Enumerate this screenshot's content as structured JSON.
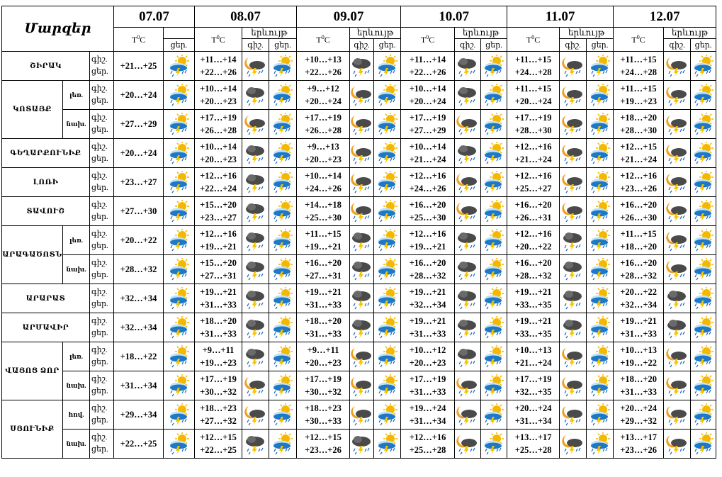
{
  "header": {
    "marzer_label": "Մարզեր",
    "temp_label": "T",
    "temp_unit": "C",
    "degree": "0",
    "phenomenon_label": "երևույթ",
    "night_abbr": "գիշ.",
    "day_abbr": "ցեր.",
    "dates": [
      "07.07",
      "08.07",
      "09.07",
      "10.07",
      "11.07",
      "12.07"
    ]
  },
  "rows": [
    {
      "region": "ՇԻՐԱԿ",
      "part": "",
      "first_temp": "+21…+25",
      "first_icon": "sun-cloud-thunder-rain",
      "days": [
        {
          "night": "+11…+14",
          "day": "+22…+26",
          "icon_night": "moon-cloud-thunder-rain",
          "icon_day": "sun-cloud-thunder-rain"
        },
        {
          "night": "+10…+13",
          "day": "+22…+26",
          "icon_night": "dark-cloud-thunder-rain",
          "icon_day": "sun-cloud-thunder-rain"
        },
        {
          "night": "+11…+14",
          "day": "+22…+26",
          "icon_night": "dark-cloud-thunder-rain",
          "icon_day": "sun-cloud-thunder-rain"
        },
        {
          "night": "+11…+15",
          "day": "+24…+28",
          "icon_night": "moon-cloud-thunder-rain",
          "icon_day": "sun-cloud-thunder-rain"
        },
        {
          "night": "+11…+15",
          "day": "+24…+28",
          "icon_night": "moon-cloud-thunder-rain",
          "icon_day": "sun-cloud-thunder-rain"
        }
      ]
    },
    {
      "region": "ԿՈՏԱՅՔ",
      "part": "լեռ.",
      "first_temp": "+20…+24",
      "first_icon": "sun-cloud-thunder-rain",
      "days": [
        {
          "night": "+10…+14",
          "day": "+20…+23",
          "icon_night": "dark-cloud-thunder-rain",
          "icon_day": "sun-cloud-thunder-rain"
        },
        {
          "night": "+9…+12",
          "day": "+20…+24",
          "icon_night": "moon-cloud-thunder-rain",
          "icon_day": "sun-cloud-thunder-rain"
        },
        {
          "night": "+10…+14",
          "day": "+20…+24",
          "icon_night": "dark-cloud-thunder-rain",
          "icon_day": "sun-cloud-thunder-rain"
        },
        {
          "night": "+11…+15",
          "day": "+20…+24",
          "icon_night": "moon-cloud-thunder-rain",
          "icon_day": "sun-cloud-thunder-rain"
        },
        {
          "night": "+11…+15",
          "day": "+19…+23",
          "icon_night": "moon-cloud-thunder-rain",
          "icon_day": "sun-cloud-thunder-rain"
        }
      ]
    },
    {
      "region": "",
      "part": "նախ.",
      "first_temp": "+27…+29",
      "first_icon": "sun-cloud-thunder-rain",
      "days": [
        {
          "night": "+17…+19",
          "day": "+26…+28",
          "icon_night": "moon-cloud-thunder-rain",
          "icon_day": "sun-cloud-thunder-rain"
        },
        {
          "night": "+17…+19",
          "day": "+26…+28",
          "icon_night": "moon-cloud-thunder-rain",
          "icon_day": "sun-cloud-thunder-rain"
        },
        {
          "night": "+17…+19",
          "day": "+27…+29",
          "icon_night": "moon-cloud-thunder-rain",
          "icon_day": "sun-cloud-thunder-rain"
        },
        {
          "night": "+17…+19",
          "day": "+28…+30",
          "icon_night": "moon-cloud-thunder-rain",
          "icon_day": "sun-cloud-thunder-rain"
        },
        {
          "night": "+18…+20",
          "day": "+28…+30",
          "icon_night": "moon-cloud-thunder-rain",
          "icon_day": "sun-cloud-thunder-rain"
        }
      ]
    },
    {
      "region": "ԳԵՂԱՐՔՈՒՆԻՔ",
      "part": "",
      "first_temp": "+20…+24",
      "first_icon": "sun-cloud-thunder-rain",
      "days": [
        {
          "night": "+10…+14",
          "day": "+20…+23",
          "icon_night": "dark-cloud-thunder-rain",
          "icon_day": "sun-cloud-thunder-rain"
        },
        {
          "night": "+9…+13",
          "day": "+20…+23",
          "icon_night": "moon-cloud-thunder-rain",
          "icon_day": "sun-cloud-thunder-rain"
        },
        {
          "night": "+10…+14",
          "day": "+21…+24",
          "icon_night": "dark-cloud-thunder-rain",
          "icon_day": "sun-cloud-thunder-rain"
        },
        {
          "night": "+12…+16",
          "day": "+21…+24",
          "icon_night": "moon-cloud-thunder-rain",
          "icon_day": "sun-cloud-thunder-rain"
        },
        {
          "night": "+12…+15",
          "day": "+21…+24",
          "icon_night": "moon-cloud-thunder-rain",
          "icon_day": "sun-cloud-thunder-rain"
        }
      ]
    },
    {
      "region": "ԼՈՌԻ",
      "part": "",
      "first_temp": "+23…+27",
      "first_icon": "sun-cloud-thunder-rain",
      "days": [
        {
          "night": "+12…+16",
          "day": "+22…+24",
          "icon_night": "dark-cloud-thunder-rain",
          "icon_day": "sun-cloud-thunder-rain"
        },
        {
          "night": "+10…+14",
          "day": "+24…+26",
          "icon_night": "moon-cloud-thunder-rain",
          "icon_day": "sun-cloud-thunder-rain"
        },
        {
          "night": "+12…+16",
          "day": "+24…+26",
          "icon_night": "moon-cloud-thunder-rain",
          "icon_day": "sun-cloud-thunder-rain"
        },
        {
          "night": "+12…+16",
          "day": "+25…+27",
          "icon_night": "moon-cloud-thunder-rain",
          "icon_day": "sun-cloud-thunder-rain"
        },
        {
          "night": "+12…+16",
          "day": "+23…+26",
          "icon_night": "moon-cloud-thunder-rain",
          "icon_day": "sun-cloud-thunder-rain"
        }
      ]
    },
    {
      "region": "ՏԱՎՈՒՇ",
      "part": "",
      "first_temp": "+27…+30",
      "first_icon": "sun-cloud-thunder-rain",
      "days": [
        {
          "night": "+15…+20",
          "day": "+23…+27",
          "icon_night": "dark-cloud-thunder-rain",
          "icon_day": "sun-cloud-thunder-rain"
        },
        {
          "night": "+14…+18",
          "day": "+25…+30",
          "icon_night": "moon-cloud-thunder-rain",
          "icon_day": "sun-cloud-thunder-rain"
        },
        {
          "night": "+16…+20",
          "day": "+25…+30",
          "icon_night": "moon-cloud-thunder-rain",
          "icon_day": "sun-cloud-thunder-rain"
        },
        {
          "night": "+16…+20",
          "day": "+26…+31",
          "icon_night": "moon-cloud-thunder-rain",
          "icon_day": "sun-cloud-thunder-rain"
        },
        {
          "night": "+16…+20",
          "day": "+26…+30",
          "icon_night": "moon-cloud-thunder-rain",
          "icon_day": "sun-cloud-thunder-rain"
        }
      ]
    },
    {
      "region": "ԱՐԱԳԱԾՈՏՆ",
      "part": "լեռ.",
      "first_temp": "+20…+22",
      "first_icon": "sun-cloud-thunder-rain",
      "days": [
        {
          "night": "+12…+16",
          "day": "+19…+21",
          "icon_night": "dark-cloud-thunder-rain",
          "icon_day": "sun-cloud-thunder-rain"
        },
        {
          "night": "+11…+15",
          "day": "+19…+21",
          "icon_night": "dark-cloud-thunder-rain",
          "icon_day": "sun-cloud-thunder-rain"
        },
        {
          "night": "+12…+16",
          "day": "+19…+21",
          "icon_night": "dark-cloud-thunder-rain",
          "icon_day": "sun-cloud-thunder-rain"
        },
        {
          "night": "+12…+16",
          "day": "+20…+22",
          "icon_night": "dark-cloud-thunder-rain",
          "icon_day": "sun-cloud-thunder-rain"
        },
        {
          "night": "+11…+15",
          "day": "+18…+20",
          "icon_night": "moon-cloud-thunder-rain",
          "icon_day": "sun-cloud-thunder-rain"
        }
      ]
    },
    {
      "region": "",
      "part": "նախ.",
      "first_temp": "+28…+32",
      "first_icon": "sun-cloud-thunder-rain",
      "days": [
        {
          "night": "+15…+20",
          "day": "+27…+31",
          "icon_night": "dark-cloud-thunder-rain",
          "icon_day": "sun-cloud-thunder-rain"
        },
        {
          "night": "+16…+20",
          "day": "+27…+31",
          "icon_night": "dark-cloud-thunder-rain",
          "icon_day": "sun-cloud-thunder-rain"
        },
        {
          "night": "+16…+20",
          "day": "+28…+32",
          "icon_night": "dark-cloud-thunder-rain",
          "icon_day": "sun-cloud-thunder-rain"
        },
        {
          "night": "+16…+20",
          "day": "+28…+32",
          "icon_night": "dark-cloud-thunder-rain",
          "icon_day": "sun-cloud-thunder-rain"
        },
        {
          "night": "+16…+20",
          "day": "+28…+32",
          "icon_night": "moon-cloud-thunder-rain",
          "icon_day": "sun-cloud-thunder-rain"
        }
      ]
    },
    {
      "region": "ԱՐԱՐԱՏ",
      "part": "",
      "first_temp": "+32…+34",
      "first_icon": "sun-cloud-thunder-rain",
      "days": [
        {
          "night": "+19…+21",
          "day": "+31…+33",
          "icon_night": "dark-cloud-thunder-rain",
          "icon_day": "sun-cloud-thunder-rain"
        },
        {
          "night": "+19…+21",
          "day": "+31…+33",
          "icon_night": "dark-cloud-thunder-rain",
          "icon_day": "sun-cloud-thunder-rain"
        },
        {
          "night": "+19…+21",
          "day": "+32…+34",
          "icon_night": "dark-cloud-thunder-rain",
          "icon_day": "sun-cloud-thunder-rain"
        },
        {
          "night": "+19…+21",
          "day": "+33…+35",
          "icon_night": "dark-cloud-thunder-rain",
          "icon_day": "sun-cloud-thunder-rain"
        },
        {
          "night": "+20…+22",
          "day": "+32…+34",
          "icon_night": "dark-cloud-thunder-rain",
          "icon_day": "sun-cloud-thunder-rain"
        }
      ]
    },
    {
      "region": "ԱՐՄԱՎԻՐ",
      "part": "",
      "first_temp": "+32…+34",
      "first_icon": "sun-cloud-thunder-rain",
      "days": [
        {
          "night": "+18…+20",
          "day": "+31…+33",
          "icon_night": "dark-cloud-thunder-rain",
          "icon_day": "sun-cloud-thunder-rain"
        },
        {
          "night": "+18…+20",
          "day": "+31…+33",
          "icon_night": "dark-cloud-thunder-rain",
          "icon_day": "sun-cloud-thunder-rain"
        },
        {
          "night": "+19…+21",
          "day": "+31…+33",
          "icon_night": "dark-cloud-thunder-rain",
          "icon_day": "sun-cloud-thunder-rain"
        },
        {
          "night": "+19…+21",
          "day": "+33…+35",
          "icon_night": "dark-cloud-thunder-rain",
          "icon_day": "sun-cloud-thunder-rain"
        },
        {
          "night": "+19…+21",
          "day": "+31…+33",
          "icon_night": "dark-cloud-thunder-rain",
          "icon_day": "sun-cloud-thunder-rain"
        }
      ]
    },
    {
      "region": "ՎԱՅՈՑ ՁՈՐ",
      "part": "լեռ.",
      "first_temp": "+18…+22",
      "first_icon": "sun-cloud-thunder-rain",
      "days": [
        {
          "night": "+9…+11",
          "day": "+19…+23",
          "icon_night": "dark-cloud-thunder-rain",
          "icon_day": "sun-cloud-thunder-rain"
        },
        {
          "night": "+9…+11",
          "day": "+20…+23",
          "icon_night": "moon-cloud-thunder-rain",
          "icon_day": "sun-cloud-thunder-rain"
        },
        {
          "night": "+10…+12",
          "day": "+20…+23",
          "icon_night": "dark-cloud-thunder-rain",
          "icon_day": "sun-cloud-thunder-rain"
        },
        {
          "night": "+10…+13",
          "day": "+21…+24",
          "icon_night": "moon-cloud-thunder-rain",
          "icon_day": "sun-cloud-thunder-rain"
        },
        {
          "night": "+10…+13",
          "day": "+19…+22",
          "icon_night": "moon-cloud-thunder-rain",
          "icon_day": "sun-cloud-thunder-rain"
        }
      ]
    },
    {
      "region": "",
      "part": "նախ.",
      "first_temp": "+31…+34",
      "first_icon": "sun-cloud-thunder-rain",
      "days": [
        {
          "night": "+17…+19",
          "day": "+30…+32",
          "icon_night": "moon-cloud-thunder-rain",
          "icon_day": "sun-cloud-thunder-rain"
        },
        {
          "night": "+17…+19",
          "day": "+30…+32",
          "icon_night": "moon-cloud-thunder-rain",
          "icon_day": "sun-cloud-thunder-rain"
        },
        {
          "night": "+17…+19",
          "day": "+31…+33",
          "icon_night": "moon-cloud-thunder-rain",
          "icon_day": "sun-cloud-thunder-rain"
        },
        {
          "night": "+17…+19",
          "day": "+32…+35",
          "icon_night": "moon-cloud-thunder-rain",
          "icon_day": "sun-cloud-thunder-rain"
        },
        {
          "night": "+18…+20",
          "day": "+31…+33",
          "icon_night": "moon-cloud-thunder-rain",
          "icon_day": "sun-cloud-thunder-rain"
        }
      ]
    },
    {
      "region": "ՍՅՈՒՆԻՔ",
      "part": "հով.",
      "first_temp": "+29…+34",
      "first_icon": "sun-cloud-thunder-rain",
      "days": [
        {
          "night": "+18…+23",
          "day": "+27…+32",
          "icon_night": "moon-cloud-thunder-rain",
          "icon_day": "sun-cloud-thunder-rain"
        },
        {
          "night": "+18…+23",
          "day": "+30…+33",
          "icon_night": "moon-cloud-thunder-rain",
          "icon_day": "sun-cloud-thunder-rain"
        },
        {
          "night": "+19…+24",
          "day": "+31…+34",
          "icon_night": "moon-cloud-thunder-rain",
          "icon_day": "sun-cloud-thunder-rain"
        },
        {
          "night": "+20…+24",
          "day": "+31…+34",
          "icon_night": "moon-cloud-thunder-rain",
          "icon_day": "sun-cloud-thunder-rain"
        },
        {
          "night": "+20…+24",
          "day": "+29…+32",
          "icon_night": "moon-cloud-thunder-rain",
          "icon_day": "sun-cloud-thunder-rain"
        }
      ]
    },
    {
      "region": "",
      "part": "նախ.",
      "first_temp": "+22…+25",
      "first_icon": "sun-cloud-thunder-rain",
      "days": [
        {
          "night": "+12…+15",
          "day": "+22…+25",
          "icon_night": "dark-cloud-thunder-rain",
          "icon_day": "sun-cloud-thunder-rain"
        },
        {
          "night": "+12…+15",
          "day": "+23…+26",
          "icon_night": "dark-cloud-thunder-rain",
          "icon_day": "sun-cloud-thunder-rain"
        },
        {
          "night": "+12…+16",
          "day": "+25…+28",
          "icon_night": "moon-cloud-thunder-rain",
          "icon_day": "sun-cloud-thunder-rain"
        },
        {
          "night": "+13…+17",
          "day": "+25…+28",
          "icon_night": "moon-cloud-thunder-rain",
          "icon_day": "sun-cloud-thunder-rain"
        },
        {
          "night": "+13…+17",
          "day": "+23…+26",
          "icon_night": "moon-cloud-thunder-rain",
          "icon_day": "sun-cloud-thunder-rain"
        }
      ]
    }
  ],
  "colors": {
    "sun": "#f5b800",
    "cloud_light": "#bfe3f5",
    "cloud_blue": "#1e78c8",
    "cloud_dark": "#4a4a4a",
    "moon": "#f0a020",
    "bolt": "#f5c400",
    "rain": "#1565c0"
  }
}
